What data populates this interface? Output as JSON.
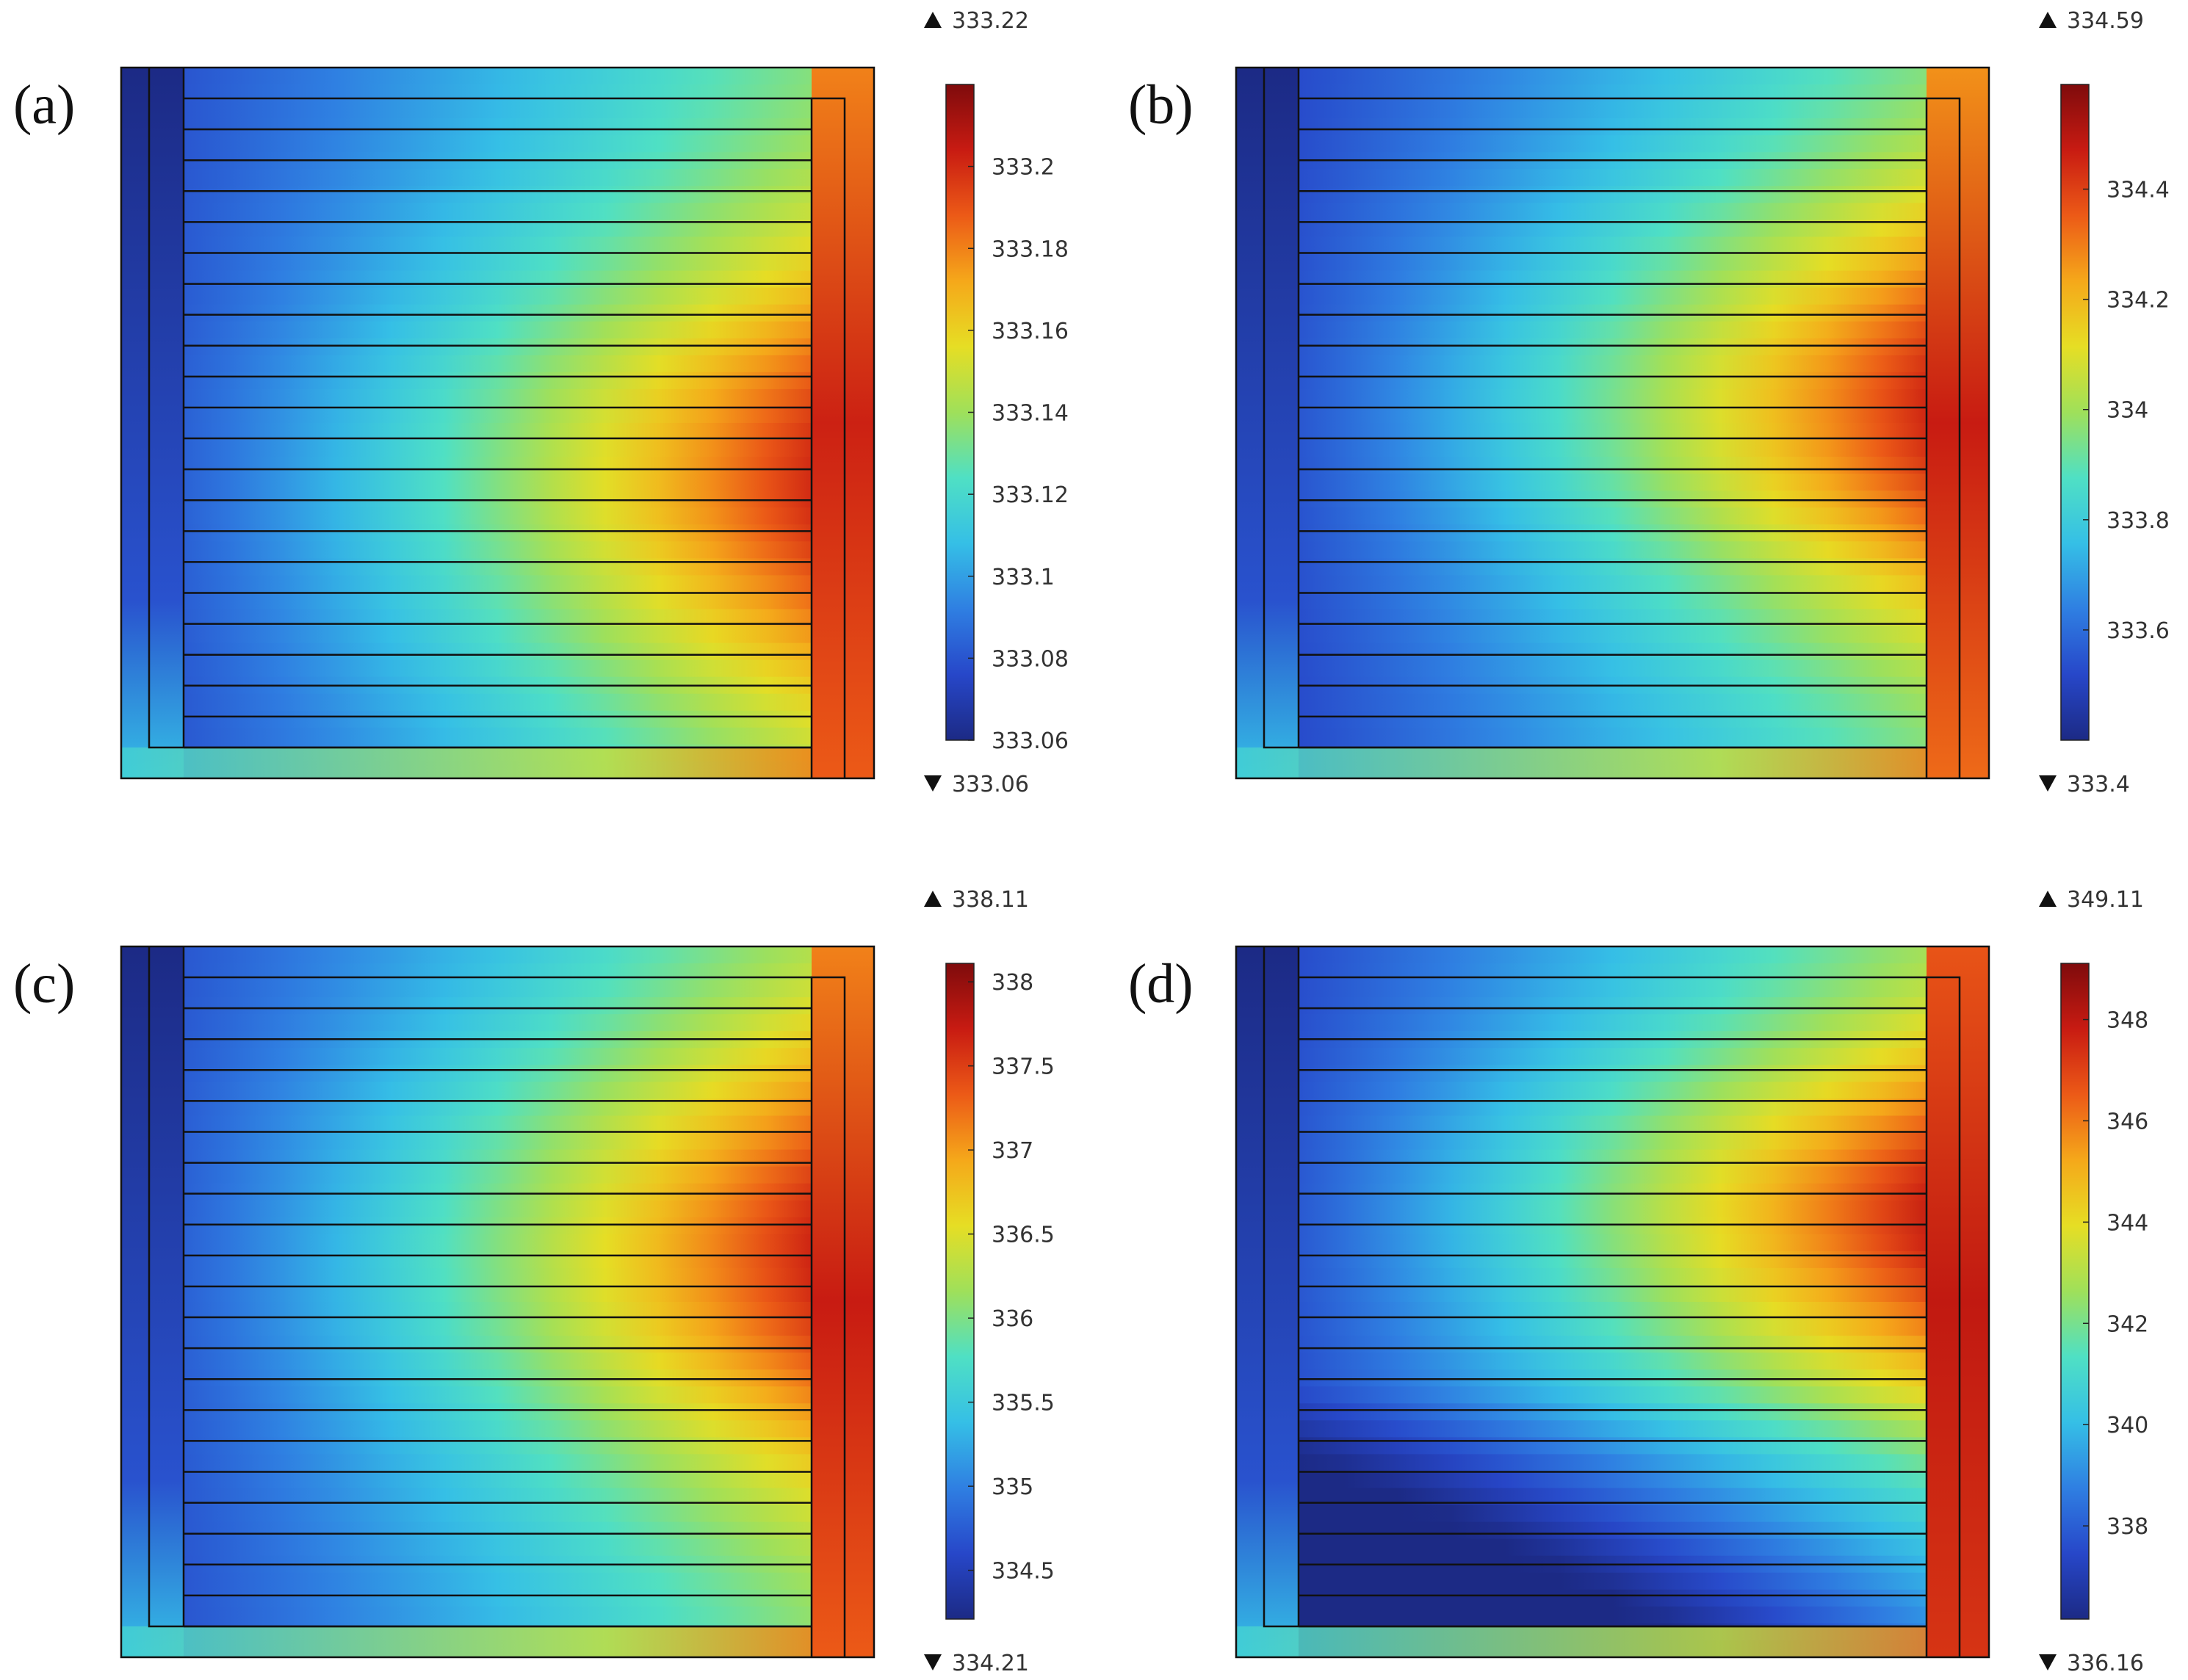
{
  "colormap": [
    "#1c2a85",
    "#2747c9",
    "#2f7fe2",
    "#35bfe6",
    "#4fe0c4",
    "#9fe05a",
    "#e6de24",
    "#f5a81a",
    "#ec5a17",
    "#c81b12",
    "#7f0b0c"
  ],
  "chart_data": [
    {
      "type": "heatmap",
      "label": "(a)",
      "max_label": "333.22",
      "min_label": "333.06",
      "vmin": 333.06,
      "vmax": 333.22,
      "ticks": [
        333.06,
        333.08,
        333.1,
        333.12,
        333.14,
        333.16,
        333.18,
        333.2
      ],
      "tick_labels": [
        "333.06",
        "333.08",
        "333.1",
        "333.12",
        "333.14",
        "333.16",
        "333.18",
        "333.2"
      ],
      "channels": 21,
      "hotspot_row": 0.58,
      "spread": 0.32,
      "left_value": 0.1,
      "right_value": 0.8,
      "hot_value": 0.97,
      "pattern": "a"
    },
    {
      "type": "heatmap",
      "label": "(b)",
      "max_label": "334.59",
      "min_label": "333.4",
      "vmin": 333.4,
      "vmax": 334.59,
      "ticks": [
        333.6,
        333.8,
        334,
        334.2,
        334.4
      ],
      "tick_labels": [
        "333.6",
        "333.8",
        "334",
        "334.2",
        "334.4"
      ],
      "channels": 21,
      "hotspot_row": 0.48,
      "spread": 0.3,
      "left_value": 0.08,
      "right_value": 0.78,
      "hot_value": 0.98,
      "pattern": "b"
    },
    {
      "type": "heatmap",
      "label": "(c)",
      "max_label": "338.11",
      "min_label": "334.21",
      "vmin": 334.21,
      "vmax": 338.11,
      "ticks": [
        334.5,
        335,
        335.5,
        336,
        336.5,
        337,
        337.5,
        338
      ],
      "tick_labels": [
        "334.5",
        "335",
        "335.5",
        "336",
        "336.5",
        "337",
        "337.5",
        "338"
      ],
      "channels": 21,
      "hotspot_row": 0.43,
      "spread": 0.32,
      "left_value": 0.1,
      "right_value": 0.8,
      "hot_value": 0.98,
      "pattern": "c"
    },
    {
      "type": "heatmap",
      "label": "(d)",
      "max_label": "349.11",
      "min_label": "336.16",
      "vmin": 336.16,
      "vmax": 349.11,
      "ticks": [
        338,
        340,
        342,
        344,
        346,
        348
      ],
      "tick_labels": [
        "338",
        "340",
        "342",
        "344",
        "346",
        "348"
      ],
      "channels": 21,
      "hotspot_row": 0.38,
      "spread": 0.24,
      "left_value": 0.08,
      "right_value": 0.86,
      "hot_value": 0.99,
      "pattern": "d"
    }
  ]
}
